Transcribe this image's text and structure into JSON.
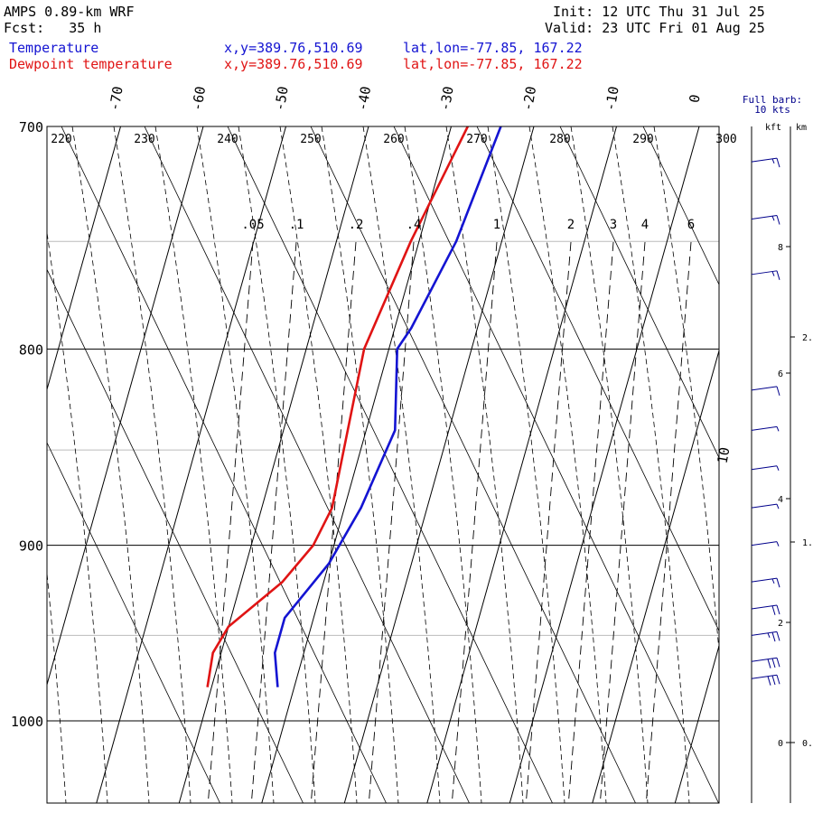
{
  "header": {
    "model": "AMPS 0.89-km WRF",
    "forecast": "Fcst:   35 h",
    "init": "Init: 12 UTC Thu 31 Jul 25",
    "valid": "Valid: 23 UTC Fri 01 Aug 25",
    "legend_temp": "Temperature",
    "legend_dew": "Dewpoint temperature",
    "xy_temp": "x,y=389.76,510.69",
    "latlon_temp": "lat,lon=-77.85, 167.22",
    "xy_dew": "x,y=389.76,510.69",
    "latlon_dew": "lat,lon=-77.85, 167.22"
  },
  "colors": {
    "temperature": "#1414d2",
    "dewpoint": "#e01414",
    "axes": "#000000",
    "grid": "#bbbbbb"
  },
  "chart_data": {
    "type": "line",
    "subtype": "skew-t log-p",
    "y_axis": {
      "label": "",
      "unit": "hPa",
      "ticks": [
        "700",
        "800",
        "900",
        "1000"
      ],
      "range": [
        700,
        1040
      ]
    },
    "isotherm_labels": [
      "-70",
      "-60",
      "-50",
      "-40",
      "-30",
      "-20",
      "-10",
      "0",
      "10"
    ],
    "dry_adiabat_labels": [
      "220",
      "230",
      "240",
      "250",
      "260",
      "270",
      "280",
      "290",
      "300"
    ],
    "mixing_ratio_labels": [
      ".05",
      ".1",
      ".2",
      ".4",
      "1",
      "2",
      "3",
      "4",
      "6"
    ],
    "series": [
      {
        "name": "Temperature",
        "points": [
          {
            "p": 700,
            "t": -24.0
          },
          {
            "p": 750,
            "t": -25.5
          },
          {
            "p": 790,
            "t": -28.0
          },
          {
            "p": 800,
            "t": -29.0
          },
          {
            "p": 840,
            "t": -26.5
          },
          {
            "p": 880,
            "t": -28.0
          },
          {
            "p": 910,
            "t": -30.0
          },
          {
            "p": 940,
            "t": -33.5
          },
          {
            "p": 960,
            "t": -33.5
          },
          {
            "p": 980,
            "t": -32.0
          }
        ]
      },
      {
        "name": "Dewpoint temperature",
        "points": [
          {
            "p": 700,
            "t": -28.0
          },
          {
            "p": 750,
            "t": -31.0
          },
          {
            "p": 800,
            "t": -33.0
          },
          {
            "p": 880,
            "t": -31.5
          },
          {
            "p": 900,
            "t": -32.5
          },
          {
            "p": 920,
            "t": -35.0
          },
          {
            "p": 945,
            "t": -40.0
          },
          {
            "p": 960,
            "t": -41.0
          },
          {
            "p": 980,
            "t": -40.5
          }
        ]
      }
    ],
    "wind_panel": {
      "title_lines": [
        "Full barb:",
        "10 kts"
      ],
      "left_unit": "kft",
      "right_unit": "km",
      "kft_ticks": [
        "8",
        "6",
        "4",
        "2",
        "0"
      ],
      "km_ticks": [
        "2.",
        "1.",
        "0."
      ],
      "barbs": [
        {
          "p": 715,
          "speed_kt": 15
        },
        {
          "p": 740,
          "speed_kt": 15
        },
        {
          "p": 765,
          "speed_kt": 15
        },
        {
          "p": 820,
          "speed_kt": 10
        },
        {
          "p": 840,
          "speed_kt": 5
        },
        {
          "p": 860,
          "speed_kt": 5
        },
        {
          "p": 880,
          "speed_kt": 5
        },
        {
          "p": 900,
          "speed_kt": 5
        },
        {
          "p": 920,
          "speed_kt": 15
        },
        {
          "p": 935,
          "speed_kt": 20
        },
        {
          "p": 950,
          "speed_kt": 25
        },
        {
          "p": 965,
          "speed_kt": 30
        },
        {
          "p": 975,
          "speed_kt": 30
        }
      ]
    }
  }
}
